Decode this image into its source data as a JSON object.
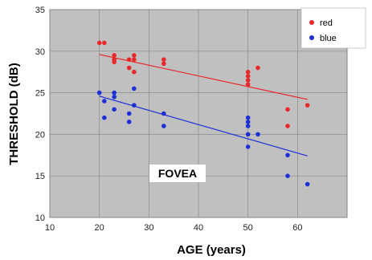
{
  "chart_data": {
    "type": "scatter",
    "xlabel": "AGE (years)",
    "ylabel": "THRESHOLD (dB)",
    "xlim": [
      10,
      70
    ],
    "ylim": [
      10,
      35
    ],
    "xticks": [
      10,
      20,
      30,
      40,
      50,
      60
    ],
    "yticks": [
      10,
      15,
      20,
      25,
      30,
      35
    ],
    "grid": true,
    "legend_position": "top-right",
    "annotation": "FOVEA",
    "colors": {
      "plot_bg": "#c0c0c0",
      "red": "#e8282a",
      "blue": "#1f2fd8"
    },
    "series": [
      {
        "name": "red",
        "color": "#e8282a",
        "points": [
          [
            20,
            31
          ],
          [
            21,
            31
          ],
          [
            23,
            29.5
          ],
          [
            23,
            29
          ],
          [
            23,
            28.7
          ],
          [
            26,
            29
          ],
          [
            26,
            28
          ],
          [
            27,
            29.5
          ],
          [
            27,
            29
          ],
          [
            27,
            27.5
          ],
          [
            33,
            29
          ],
          [
            33,
            28.5
          ],
          [
            50,
            27.5
          ],
          [
            50,
            27
          ],
          [
            50,
            26.5
          ],
          [
            50,
            26
          ],
          [
            52,
            28
          ],
          [
            58,
            23
          ],
          [
            58,
            21
          ],
          [
            62,
            23.5
          ]
        ],
        "trend": [
          [
            20,
            29.6
          ],
          [
            62,
            24.2
          ]
        ]
      },
      {
        "name": "blue",
        "color": "#1f2fd8",
        "points": [
          [
            20,
            25
          ],
          [
            21,
            24
          ],
          [
            21,
            22
          ],
          [
            23,
            25
          ],
          [
            23,
            24.5
          ],
          [
            23,
            23
          ],
          [
            26,
            22.5
          ],
          [
            26,
            21.5
          ],
          [
            27,
            25.5
          ],
          [
            27,
            23.5
          ],
          [
            33,
            22.5
          ],
          [
            33,
            21
          ],
          [
            50,
            22
          ],
          [
            50,
            21.5
          ],
          [
            50,
            21
          ],
          [
            50,
            20
          ],
          [
            50,
            18.5
          ],
          [
            52,
            20
          ],
          [
            58,
            17.5
          ],
          [
            58,
            15
          ],
          [
            62,
            14
          ]
        ],
        "trend": [
          [
            20,
            24.6
          ],
          [
            62,
            17.4
          ]
        ]
      }
    ]
  }
}
